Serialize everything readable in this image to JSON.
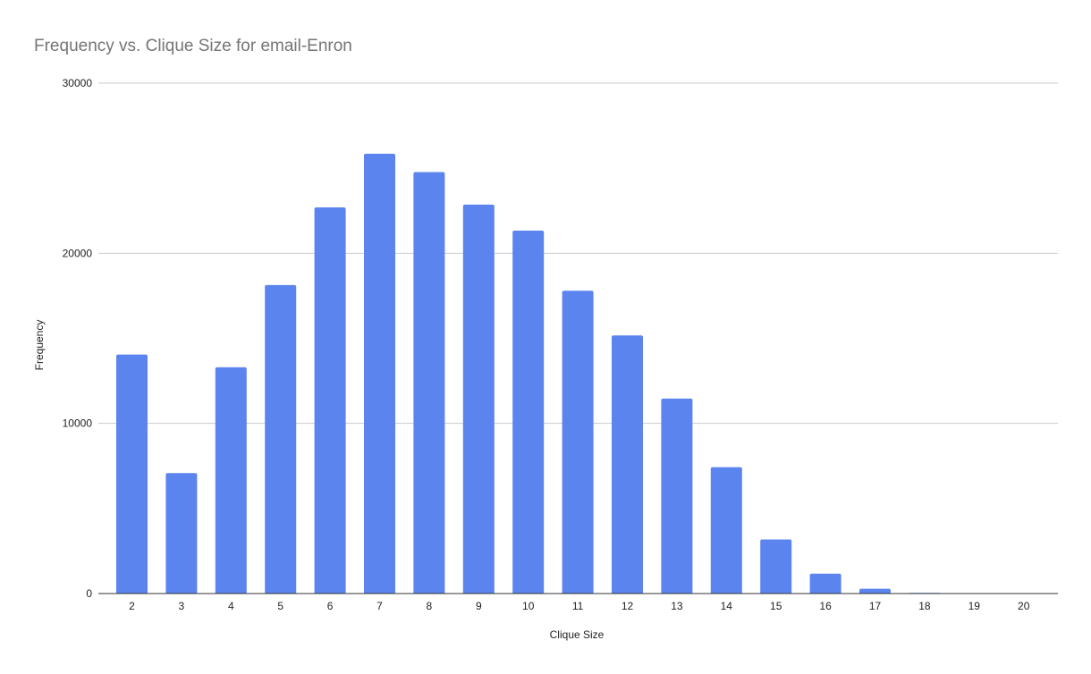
{
  "chart_data": {
    "type": "bar",
    "title": "Frequency vs. Clique Size for email-Enron",
    "xlabel": "Clique Size",
    "ylabel": "Frequency",
    "categories": [
      "2",
      "3",
      "4",
      "5",
      "6",
      "7",
      "8",
      "9",
      "10",
      "11",
      "12",
      "13",
      "14",
      "15",
      "16",
      "17",
      "18",
      "19",
      "20"
    ],
    "values": [
      14050,
      7080,
      13300,
      18130,
      22700,
      25850,
      24770,
      22860,
      21330,
      17800,
      15170,
      11460,
      7430,
      3180,
      1170,
      280,
      40,
      5,
      0
    ],
    "ylim": [
      0,
      30000
    ],
    "yticks": [
      "0",
      "10000",
      "20000",
      "30000"
    ],
    "grid": true,
    "legend": "none",
    "colors": {
      "bar": "#5b84ee",
      "grid": "#cccccc",
      "title": "#757575",
      "text": "#222222",
      "baseline": "#333333"
    }
  }
}
